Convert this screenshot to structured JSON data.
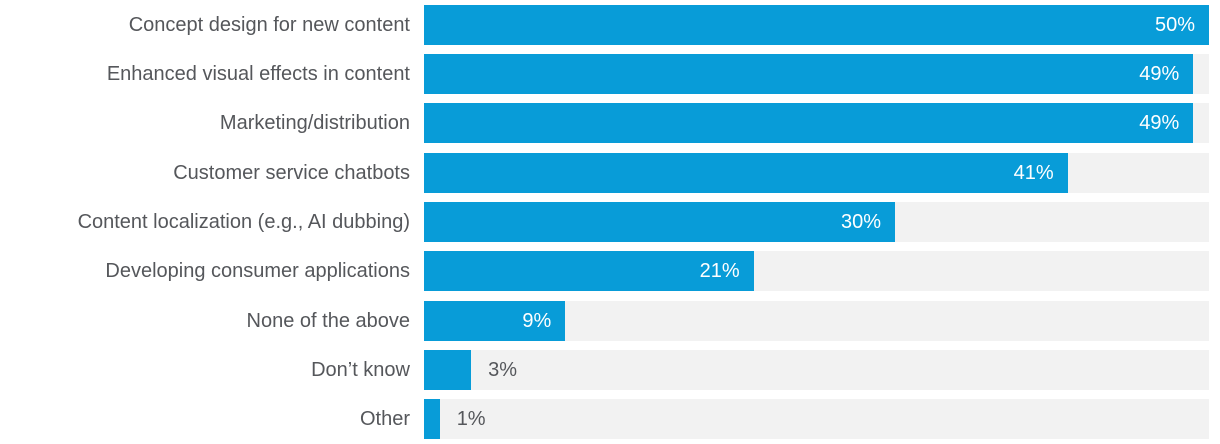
{
  "chart_data": {
    "type": "bar",
    "orientation": "horizontal",
    "title": "",
    "xlabel": "",
    "ylabel": "",
    "xlim": [
      0,
      50
    ],
    "grid": false,
    "legend": false,
    "categories": [
      "Concept design for new content",
      "Enhanced visual effects in content",
      "Marketing/distribution",
      "Customer service chatbots",
      "Content localization (e.g., AI dubbing)",
      "Developing consumer applications",
      "None of the above",
      "Don’t know",
      "Other"
    ],
    "values": [
      50,
      49,
      49,
      41,
      30,
      21,
      9,
      3,
      1
    ],
    "value_labels": [
      "50%",
      "49%",
      "49%",
      "41%",
      "30%",
      "21%",
      "9%",
      "3%",
      "1%"
    ],
    "value_suffix": "%",
    "colors": {
      "bar": "#089cd8",
      "track": "#f2f2f2",
      "category_label": "#55575b",
      "value_label_inside": "#ffffff",
      "value_label_outside": "#55575b",
      "background": "#ffffff"
    }
  }
}
